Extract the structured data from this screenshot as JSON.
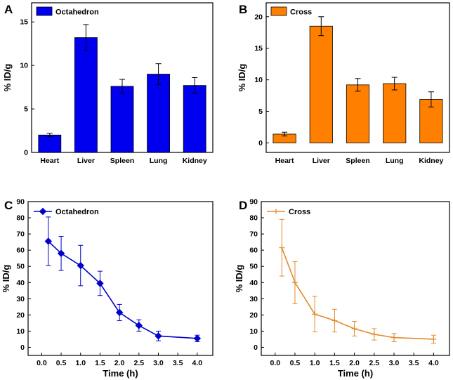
{
  "figure": {
    "panel_labels": [
      "A",
      "B",
      "C",
      "D"
    ]
  },
  "chart_data": [
    {
      "panel": "A",
      "type": "bar",
      "categories": [
        "Heart",
        "Liver",
        "Spleen",
        "Lung",
        "Kidney"
      ],
      "series": [
        {
          "name": "Octahedron",
          "values": [
            2.0,
            13.2,
            7.6,
            9.0,
            7.7
          ],
          "errors": [
            0.2,
            1.5,
            0.8,
            1.2,
            0.9
          ],
          "color": "#0000EE"
        }
      ],
      "ylabel": "% ID/g",
      "xlabel": "",
      "ylim": [
        0,
        17.2
      ],
      "yticks": [
        0,
        5,
        10,
        15
      ],
      "legend": "top-left"
    },
    {
      "panel": "B",
      "type": "bar",
      "categories": [
        "Heart",
        "Liver",
        "Spleen",
        "Lung",
        "Kidney"
      ],
      "series": [
        {
          "name": "Cross",
          "values": [
            1.4,
            18.5,
            9.2,
            9.4,
            6.9
          ],
          "errors": [
            0.3,
            1.5,
            1.0,
            1.0,
            1.2
          ],
          "color": "#FF8000"
        }
      ],
      "ylabel": "% ID/g",
      "xlabel": "",
      "ylim": [
        -1.5,
        22.2
      ],
      "yticks": [
        0,
        5,
        10,
        15,
        20
      ],
      "legend": "top-left"
    },
    {
      "panel": "C",
      "type": "line",
      "x": [
        0.17,
        0.5,
        1.0,
        1.5,
        2.0,
        2.5,
        3.0,
        4.0
      ],
      "series": [
        {
          "name": "Octahedron",
          "values": [
            65.5,
            58.0,
            50.5,
            39.5,
            21.5,
            13.5,
            7.0,
            5.5
          ],
          "errors": [
            15.0,
            10.5,
            12.5,
            7.5,
            5.0,
            3.5,
            3.0,
            2.0
          ],
          "color": "#0000CC",
          "marker": "diamond"
        }
      ],
      "xlabel": "Time (h)",
      "ylabel": "% ID/g",
      "xlim": [
        -0.35,
        4.4
      ],
      "ylim": [
        -5,
        90
      ],
      "xticks": [
        "0.0",
        "0.5",
        "1.0",
        "1.5",
        "2.0",
        "2.5",
        "3.0",
        "3.5",
        "4.0"
      ],
      "yticks": [
        0,
        10,
        20,
        30,
        40,
        50,
        60,
        70,
        80,
        90
      ],
      "legend": "top-left"
    },
    {
      "panel": "D",
      "type": "line",
      "x": [
        0.17,
        0.5,
        1.0,
        1.5,
        2.0,
        2.5,
        3.0,
        4.0
      ],
      "series": [
        {
          "name": "Cross",
          "values": [
            61.5,
            40.0,
            20.5,
            16.5,
            11.5,
            8.0,
            6.0,
            5.0
          ],
          "errors": [
            17.5,
            13.0,
            11.0,
            7.0,
            4.5,
            3.5,
            2.5,
            2.5
          ],
          "color": "#E5892A",
          "marker": "cross"
        }
      ],
      "xlabel": "Time (h)",
      "ylabel": "% ID/g",
      "xlim": [
        -0.35,
        4.4
      ],
      "ylim": [
        -5,
        90
      ],
      "xticks": [
        "0.0",
        "0.5",
        "1.0",
        "1.5",
        "2.0",
        "2.5",
        "3.0",
        "3.5",
        "4.0"
      ],
      "yticks": [
        0,
        10,
        20,
        30,
        40,
        50,
        60,
        70,
        80,
        90
      ],
      "legend": "top-left"
    }
  ]
}
